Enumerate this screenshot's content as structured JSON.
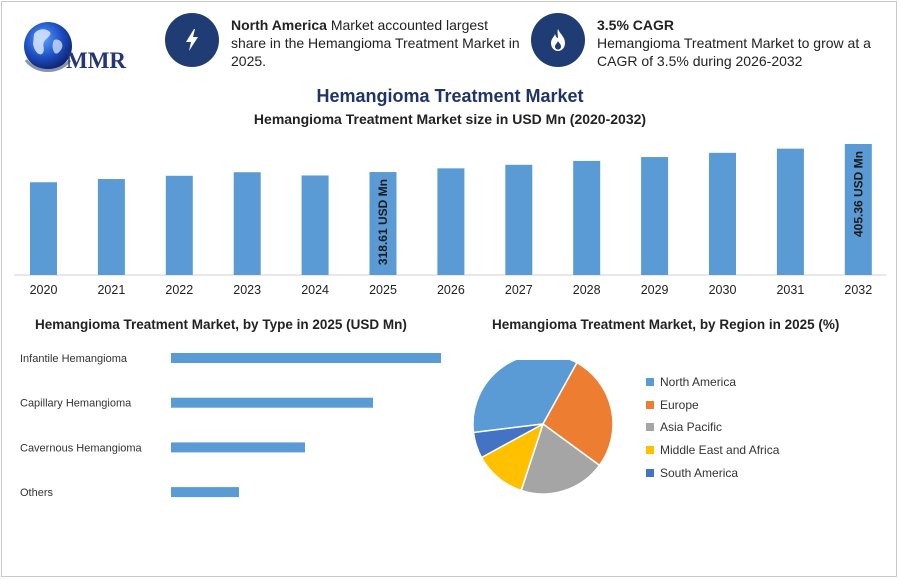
{
  "logo": {
    "text": "MMR"
  },
  "info": [
    {
      "icon": "lightning-icon",
      "bold": "North America",
      "text": " Market accounted largest share in the Hemangioma Treatment Market in 2025."
    },
    {
      "icon": "flame-icon",
      "bold": "3.5% CAGR",
      "text": "Hemangioma Treatment Market to grow at a CAGR of 3.5% during 2026-2032"
    }
  ],
  "title": "Hemangioma Treatment Market",
  "subtitle": "Hemangioma Treatment Market size in USD Mn (2020-2032)",
  "colors": {
    "bar": "#5b9bd5",
    "north_america": "#5b9bd5",
    "europe": "#ed7d31",
    "asia_pacific": "#a5a5a5",
    "middle_east_africa": "#ffc000",
    "south_america": "#4472c4",
    "icon_bg": "#1f3d74"
  },
  "chart_data": [
    {
      "type": "bar",
      "title": "Hemangioma Treatment Market size in USD Mn (2020-2032)",
      "categories": [
        "2020",
        "2021",
        "2022",
        "2023",
        "2024",
        "2025",
        "2026",
        "2027",
        "2028",
        "2029",
        "2030",
        "2031",
        "2032"
      ],
      "values": [
        287,
        297,
        307,
        318,
        308,
        318.61,
        330,
        341,
        353,
        365,
        378,
        391,
        405.36
      ],
      "data_labels": {
        "2025": "318.61 USD Mn",
        "2032": "405.36 USD Mn"
      },
      "ylim": [
        0,
        420
      ],
      "grid": false
    },
    {
      "type": "bar",
      "orientation": "horizontal",
      "title": "Hemangioma Treatment Market, by Type in 2025 (USD Mn)",
      "categories": [
        "Infantile Hemangioma",
        "Capillary Hemangioma",
        "Cavernous Hemangioma",
        "Others"
      ],
      "values": [
        135,
        101,
        67,
        34
      ],
      "xlim": [
        0,
        150
      ],
      "grid": false
    },
    {
      "type": "pie",
      "title": "Hemangioma Treatment Market, by Region in 2025 (%)",
      "categories": [
        "North America",
        "Europe",
        "Asia Pacific",
        "Middle East and Africa",
        "South America"
      ],
      "values": [
        35,
        27,
        20,
        12,
        6
      ],
      "legend": "right"
    }
  ]
}
